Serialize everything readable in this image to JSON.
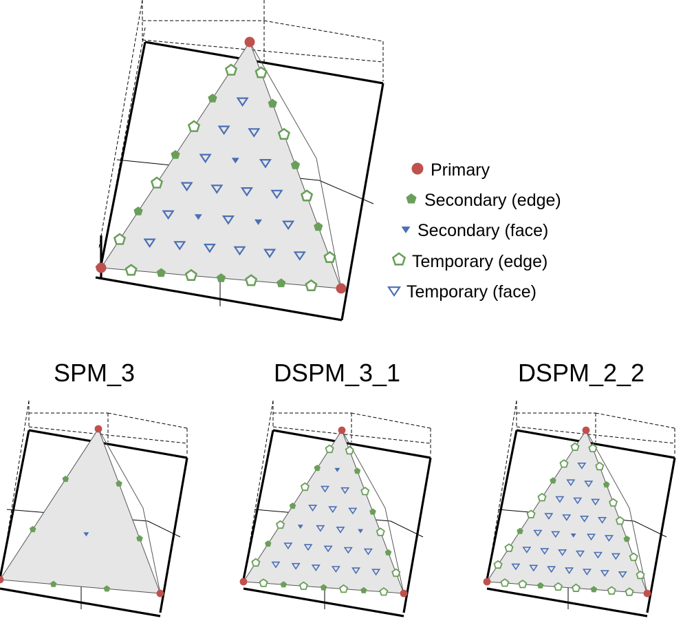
{
  "legend": {
    "primary": "Primary",
    "secondary_edge": "Secondary (edge)",
    "secondary_face": "Secondary (face)",
    "temporary_edge": "Temporary (edge)",
    "temporary_face": "Temporary (face)"
  },
  "panels": [
    {
      "title": "",
      "edge_divisions": 8
    },
    {
      "title": "SPM_3",
      "edge_divisions": 3
    },
    {
      "title": "DSPM_3_1",
      "edge_divisions": 8
    },
    {
      "title": "DSPM_2_2",
      "edge_divisions": 9
    }
  ],
  "colors": {
    "primary": "#c0504d",
    "secondary": "#6a9f5a",
    "temporary_edge": "#6a9f5a",
    "face_blue": "#4a6fb5",
    "triangle_fill": "#e6e6e6"
  },
  "icons": {
    "primary": "filled-circle",
    "secondary_edge": "filled-pentagon",
    "secondary_face": "filled-down-triangle",
    "temporary_edge": "hollow-pentagon",
    "temporary_face": "hollow-down-triangle"
  }
}
